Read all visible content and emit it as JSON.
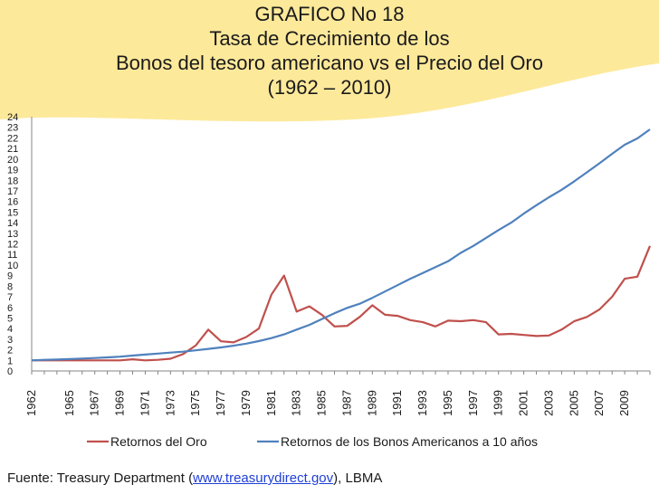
{
  "title_lines": [
    "GRAFICO No 18",
    "Tasa de Crecimiento de los",
    "Bonos del tesoro americano vs el Precio del Oro",
    "(1962 – 2010)"
  ],
  "source": {
    "prefix": "Fuente: Treasury Department (",
    "link": "www.treasurydirect.gov",
    "suffix": "), LBMA"
  },
  "colors": {
    "gold_series": "#c0504d",
    "bonds_series": "#4f81bd",
    "banner": "#fde99a"
  },
  "chart_data": {
    "type": "line",
    "title": "",
    "xlabel": "",
    "ylabel": "",
    "ylim": [
      0,
      24
    ],
    "yticks": [
      0,
      1,
      2,
      3,
      4,
      5,
      6,
      7,
      8,
      9,
      10,
      11,
      12,
      13,
      14,
      15,
      16,
      17,
      18,
      19,
      20,
      21,
      22,
      23,
      24
    ],
    "x": [
      1962,
      1963,
      1964,
      1965,
      1966,
      1967,
      1968,
      1969,
      1970,
      1971,
      1972,
      1973,
      1974,
      1975,
      1976,
      1977,
      1978,
      1979,
      1980,
      1981,
      1982,
      1983,
      1984,
      1985,
      1986,
      1987,
      1988,
      1989,
      1990,
      1991,
      1992,
      1993,
      1994,
      1995,
      1996,
      1997,
      1998,
      1999,
      2000,
      2001,
      2002,
      2003,
      2004,
      2005,
      2006,
      2007,
      2008,
      2009,
      2010,
      2011
    ],
    "xtick_labels": [
      "1962",
      "1965",
      "1967",
      "1969",
      "1971",
      "1973",
      "1975",
      "1977",
      "1979",
      "1981",
      "1983",
      "1985",
      "1987",
      "1989",
      "1991",
      "1993",
      "1995",
      "1997",
      "1999",
      "2001",
      "2003",
      "2005",
      "2007",
      "2009"
    ],
    "legend_position": "bottom",
    "series": [
      {
        "name": "Retornos del Oro",
        "color": "#c0504d",
        "values": [
          1.0,
          1.0,
          1.0,
          1.0,
          1.0,
          1.0,
          1.0,
          1.0,
          1.1,
          1.0,
          1.05,
          1.15,
          1.6,
          2.4,
          3.9,
          2.8,
          2.7,
          3.2,
          4.0,
          7.2,
          9.0,
          5.6,
          6.1,
          5.3,
          4.2,
          4.25,
          5.1,
          6.2,
          5.3,
          5.2,
          4.8,
          4.6,
          4.2,
          4.75,
          4.7,
          4.8,
          4.6,
          3.45,
          3.5,
          3.4,
          3.3,
          3.35,
          3.9,
          4.7,
          5.1,
          5.8,
          7.0,
          8.7,
          8.9,
          11.8
        ]
      },
      {
        "name": "Retornos de los Bonos Americanos a 10 años",
        "color": "#4f81bd",
        "values": [
          1.0,
          1.05,
          1.08,
          1.12,
          1.17,
          1.22,
          1.28,
          1.35,
          1.45,
          1.55,
          1.64,
          1.73,
          1.82,
          1.95,
          2.08,
          2.22,
          2.38,
          2.58,
          2.82,
          3.1,
          3.45,
          3.9,
          4.35,
          4.9,
          5.45,
          5.95,
          6.35,
          6.9,
          7.5,
          8.1,
          8.7,
          9.25,
          9.8,
          10.35,
          11.15,
          11.8,
          12.55,
          13.3,
          14.0,
          14.85,
          15.65,
          16.4,
          17.1,
          17.9,
          18.75,
          19.6,
          20.5,
          21.35,
          21.95,
          22.8
        ]
      }
    ]
  }
}
